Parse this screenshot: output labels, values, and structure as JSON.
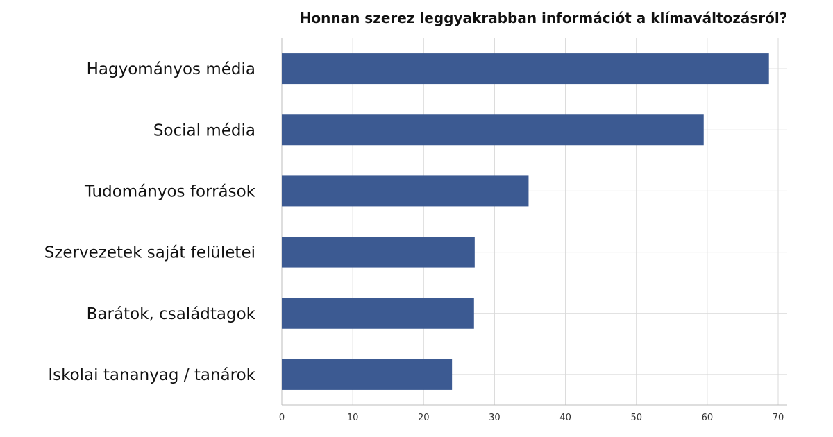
{
  "chart_data": {
    "type": "bar",
    "orientation": "horizontal",
    "title": "Honnan szerez leggyakrabban információt a klímaváltozásról?",
    "xlabel": "",
    "ylabel": "",
    "categories": [
      "Hagyományos média",
      "Social média",
      "Tudományos források",
      "Szervezetek saját felületei",
      "Barátok, családtagok",
      "Iskolai tananyag / tanárok"
    ],
    "values": [
      68.7,
      59.5,
      34.8,
      27.2,
      27.1,
      24.0
    ],
    "xlim": [
      0,
      70
    ],
    "xticks": [
      "0",
      "10",
      "20",
      "30",
      "40",
      "50",
      "60",
      "70"
    ],
    "grid": true,
    "bar_color": "#3c5a92"
  }
}
